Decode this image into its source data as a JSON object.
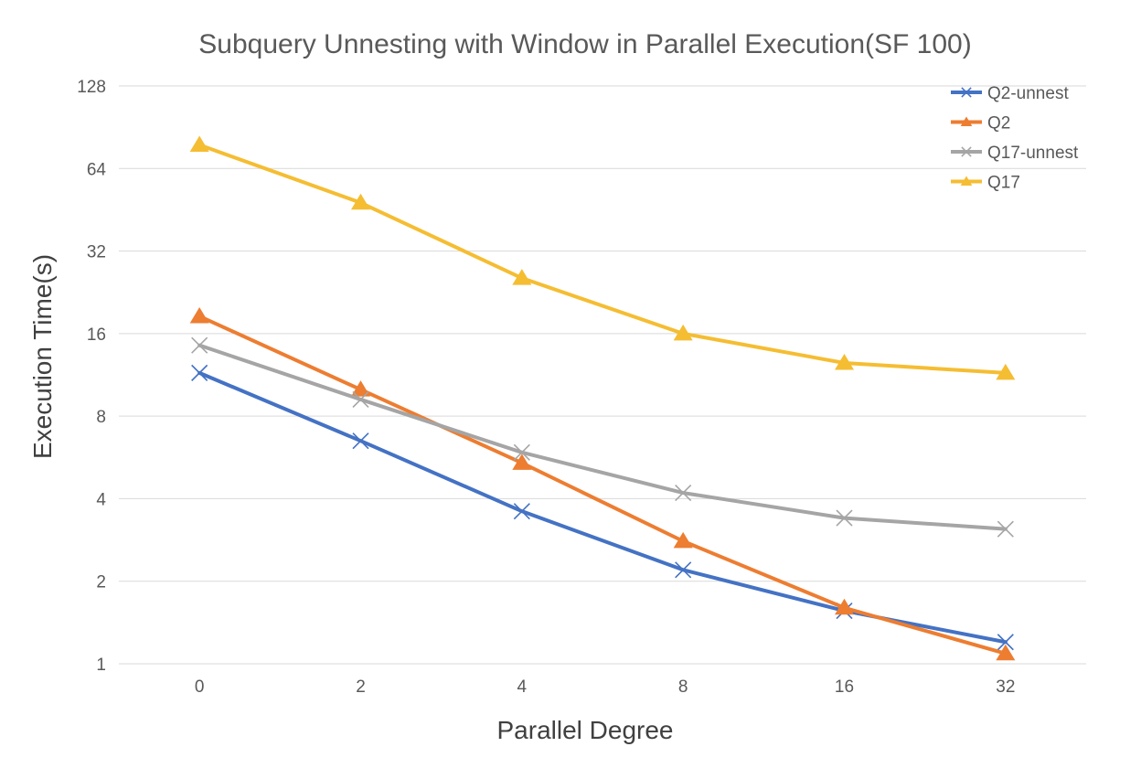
{
  "chart_data": {
    "type": "line",
    "title": "Subquery Unnesting with Window in Parallel Execution(SF 100)",
    "xlabel": "Parallel Degree",
    "ylabel": "Execution Time(s)",
    "y_scale": "log2",
    "ylim": [
      1,
      128
    ],
    "y_ticks": [
      "1",
      "2",
      "4",
      "8",
      "16",
      "32",
      "64",
      "128"
    ],
    "categories": [
      "0",
      "2",
      "4",
      "8",
      "16",
      "32"
    ],
    "grid": true,
    "legend_position": "top-right",
    "series": [
      {
        "name": "Q2-unnest",
        "color": "#4472c4",
        "marker": "x",
        "values": [
          11.5,
          6.5,
          3.6,
          2.2,
          1.56,
          1.2
        ]
      },
      {
        "name": "Q2",
        "color": "#ed7d31",
        "marker": "triangle",
        "values": [
          18.5,
          10.0,
          5.4,
          2.8,
          1.6,
          1.09
        ]
      },
      {
        "name": "Q17-unnest",
        "color": "#a5a5a5",
        "marker": "x",
        "values": [
          14.5,
          9.2,
          5.9,
          4.2,
          3.4,
          3.1
        ]
      },
      {
        "name": "Q17",
        "color": "#f5bd32",
        "marker": "triangle",
        "values": [
          78,
          48,
          25.5,
          16.0,
          12.5,
          11.5
        ]
      }
    ]
  }
}
